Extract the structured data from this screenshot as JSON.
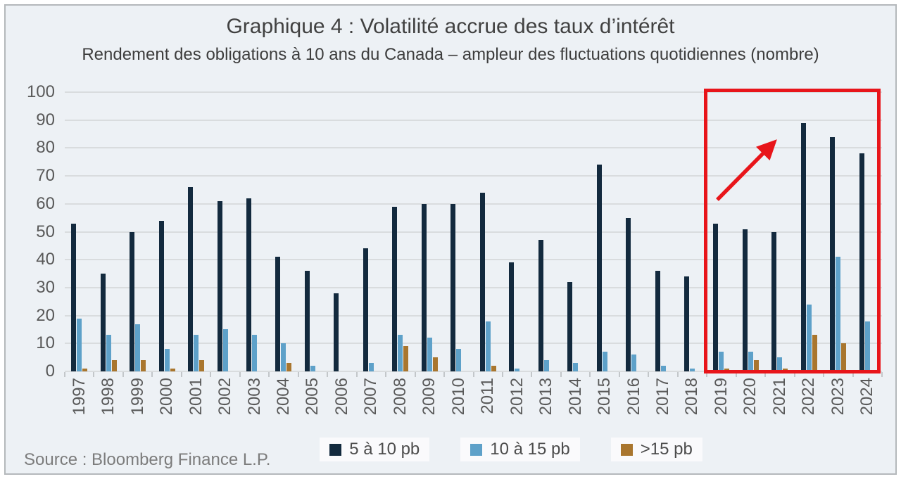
{
  "header": {
    "title": "Graphique 4 : Volatilité accrue des taux d’intérêt",
    "subtitle": "Rendement des obligations à 10 ans du Canada – ampleur des fluctuations quotidiennes (nombre)"
  },
  "source": "Source : Bloomberg Finance L.P.",
  "colors": {
    "background": "#edf1f5",
    "gridline": "#d9dcde",
    "series_dark_navy": "#132a3e",
    "series_light_blue": "#5ea1c9",
    "series_brown": "#a9762e",
    "highlight_red": "#e8151a",
    "axis_text": "#595959",
    "title_text": "#414141",
    "source_text": "#7c7c7c"
  },
  "chart_data": {
    "type": "bar",
    "title": "Graphique 4 : Volatilité accrue des taux d’intérêt",
    "subtitle": "Rendement des obligations à 10 ans du Canada – ampleur des fluctuations quotidiennes (nombre)",
    "xlabel": "",
    "ylabel": "",
    "ylim": [
      0,
      100
    ],
    "ytick_step": 10,
    "grid": true,
    "legend_position": "bottom",
    "categories": [
      "1997",
      "1998",
      "1999",
      "2000",
      "2001",
      "2002",
      "2003",
      "2004",
      "2005",
      "2006",
      "2007",
      "2008",
      "2009",
      "2010",
      "2011",
      "2012",
      "2013",
      "2014",
      "2015",
      "2016",
      "2017",
      "2018",
      "2019",
      "2020",
      "2021",
      "2022",
      "2023",
      "2024"
    ],
    "series": [
      {
        "name": "5 à 10 pb",
        "color": "#132a3e",
        "values": [
          53,
          35,
          50,
          54,
          66,
          61,
          62,
          41,
          36,
          28,
          44,
          59,
          60,
          60,
          64,
          39,
          47,
          32,
          74,
          55,
          36,
          34,
          53,
          51,
          50,
          89,
          84,
          78
        ]
      },
      {
        "name": "10 à 15 pb",
        "color": "#5ea1c9",
        "values": [
          19,
          13,
          17,
          8,
          13,
          15,
          13,
          10,
          2,
          0,
          3,
          13,
          12,
          8,
          18,
          1,
          4,
          3,
          7,
          6,
          2,
          1,
          7,
          7,
          5,
          24,
          41,
          18
        ]
      },
      {
        "name": ">15 pb",
        "color": "#a9762e",
        "values": [
          1,
          4,
          4,
          1,
          4,
          0,
          0,
          3,
          0,
          0,
          0,
          9,
          5,
          0,
          2,
          0,
          0,
          0,
          0,
          0,
          0,
          0,
          1,
          4,
          1,
          13,
          10,
          0
        ]
      }
    ],
    "annotations": {
      "highlight_box": {
        "from_year": "2019",
        "to_year": "2024",
        "color": "#e8151a"
      },
      "arrow": {
        "points_to": "2022",
        "color": "#e8151a"
      }
    }
  }
}
